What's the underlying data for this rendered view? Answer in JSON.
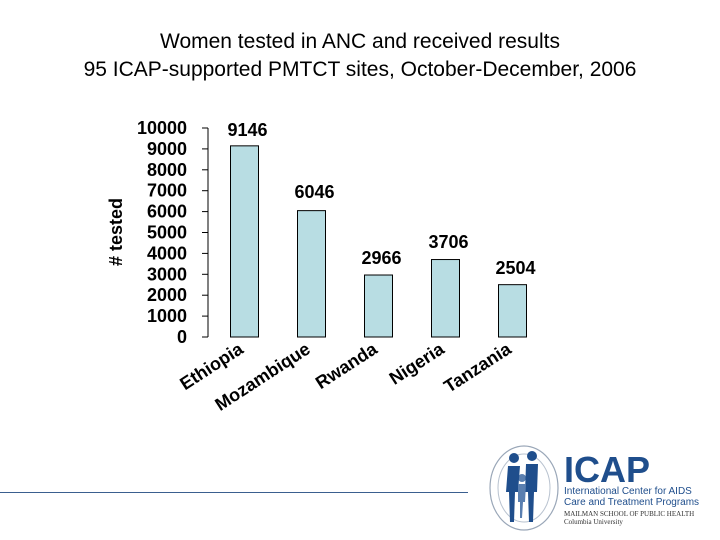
{
  "slide": {
    "title_line1": "Women tested in ANC and received results",
    "title_line2": "95 ICAP-supported PMTCT sites, October-December, 2006"
  },
  "chart_data": {
    "type": "bar",
    "categories": [
      "Ethiopia",
      "Mozambique",
      "Rwanda",
      "Nigeria",
      "Tanzania"
    ],
    "values": [
      9146,
      6046,
      2966,
      3706,
      2504
    ],
    "ylabel": "# tested",
    "xlabel": "",
    "ylim": [
      0,
      10000
    ],
    "yticks": [
      0,
      1000,
      2000,
      3000,
      4000,
      5000,
      6000,
      7000,
      8000,
      9000,
      10000
    ],
    "grid": false,
    "legend": "none",
    "bar_color": "#b8dde3"
  },
  "logo": {
    "name": "ICAP",
    "line1": "International Center for AIDS",
    "line2": "Care and Treatment Programs",
    "line3": "MAILMAN SCHOOL OF PUBLIC HEALTH",
    "line4": "Columbia University",
    "color": "#1f4e8c"
  }
}
